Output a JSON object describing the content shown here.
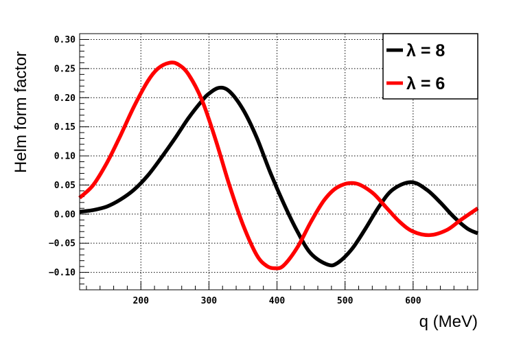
{
  "chart_data": {
    "type": "line",
    "title": "",
    "xlabel": "q (MeV)",
    "ylabel": "Helm form factor",
    "xlim": [
      110,
      695
    ],
    "ylim": [
      -0.13,
      0.31
    ],
    "x_ticks": [
      200,
      300,
      400,
      500,
      600
    ],
    "y_ticks": [
      -0.1,
      -0.05,
      0.0,
      0.05,
      0.1,
      0.15,
      0.2,
      0.25,
      0.3
    ],
    "x_tick_labels": [
      "200",
      "300",
      "400",
      "500",
      "600"
    ],
    "y_tick_labels": [
      "−0.10",
      "−0.05",
      "0.00",
      "0.05",
      "0.10",
      "0.15",
      "0.20",
      "0.25",
      "0.30"
    ],
    "grid": true,
    "legend_position": "top-right",
    "series": [
      {
        "name": "λ = 8",
        "color": "#000000",
        "x": [
          110,
          130,
          150,
          170,
          190,
          210,
          230,
          250,
          270,
          290,
          300,
          315,
          330,
          350,
          370,
          390,
          410,
          430,
          450,
          475,
          490,
          510,
          530,
          550,
          570,
          597,
          620,
          640,
          660,
          680,
          695
        ],
        "y": [
          0.004,
          0.007,
          0.013,
          0.025,
          0.042,
          0.066,
          0.097,
          0.13,
          0.165,
          0.195,
          0.207,
          0.217,
          0.211,
          0.18,
          0.132,
          0.072,
          0.018,
          -0.03,
          -0.068,
          -0.087,
          -0.083,
          -0.06,
          -0.025,
          0.013,
          0.042,
          0.055,
          0.042,
          0.02,
          -0.005,
          -0.025,
          -0.033
        ]
      },
      {
        "name": "λ = 6",
        "color": "#ff0000",
        "x": [
          110,
          130,
          150,
          170,
          190,
          210,
          225,
          242,
          255,
          270,
          290,
          310,
          330,
          350,
          370,
          385,
          398,
          410,
          430,
          450,
          470,
          490,
          515,
          540,
          560,
          580,
          600,
          625,
          650,
          670,
          695
        ],
        "y": [
          0.028,
          0.05,
          0.088,
          0.135,
          0.185,
          0.228,
          0.25,
          0.26,
          0.257,
          0.24,
          0.195,
          0.127,
          0.05,
          -0.018,
          -0.07,
          -0.089,
          -0.093,
          -0.088,
          -0.057,
          -0.013,
          0.025,
          0.047,
          0.053,
          0.037,
          0.012,
          -0.013,
          -0.03,
          -0.036,
          -0.027,
          -0.01,
          0.01
        ]
      }
    ]
  }
}
